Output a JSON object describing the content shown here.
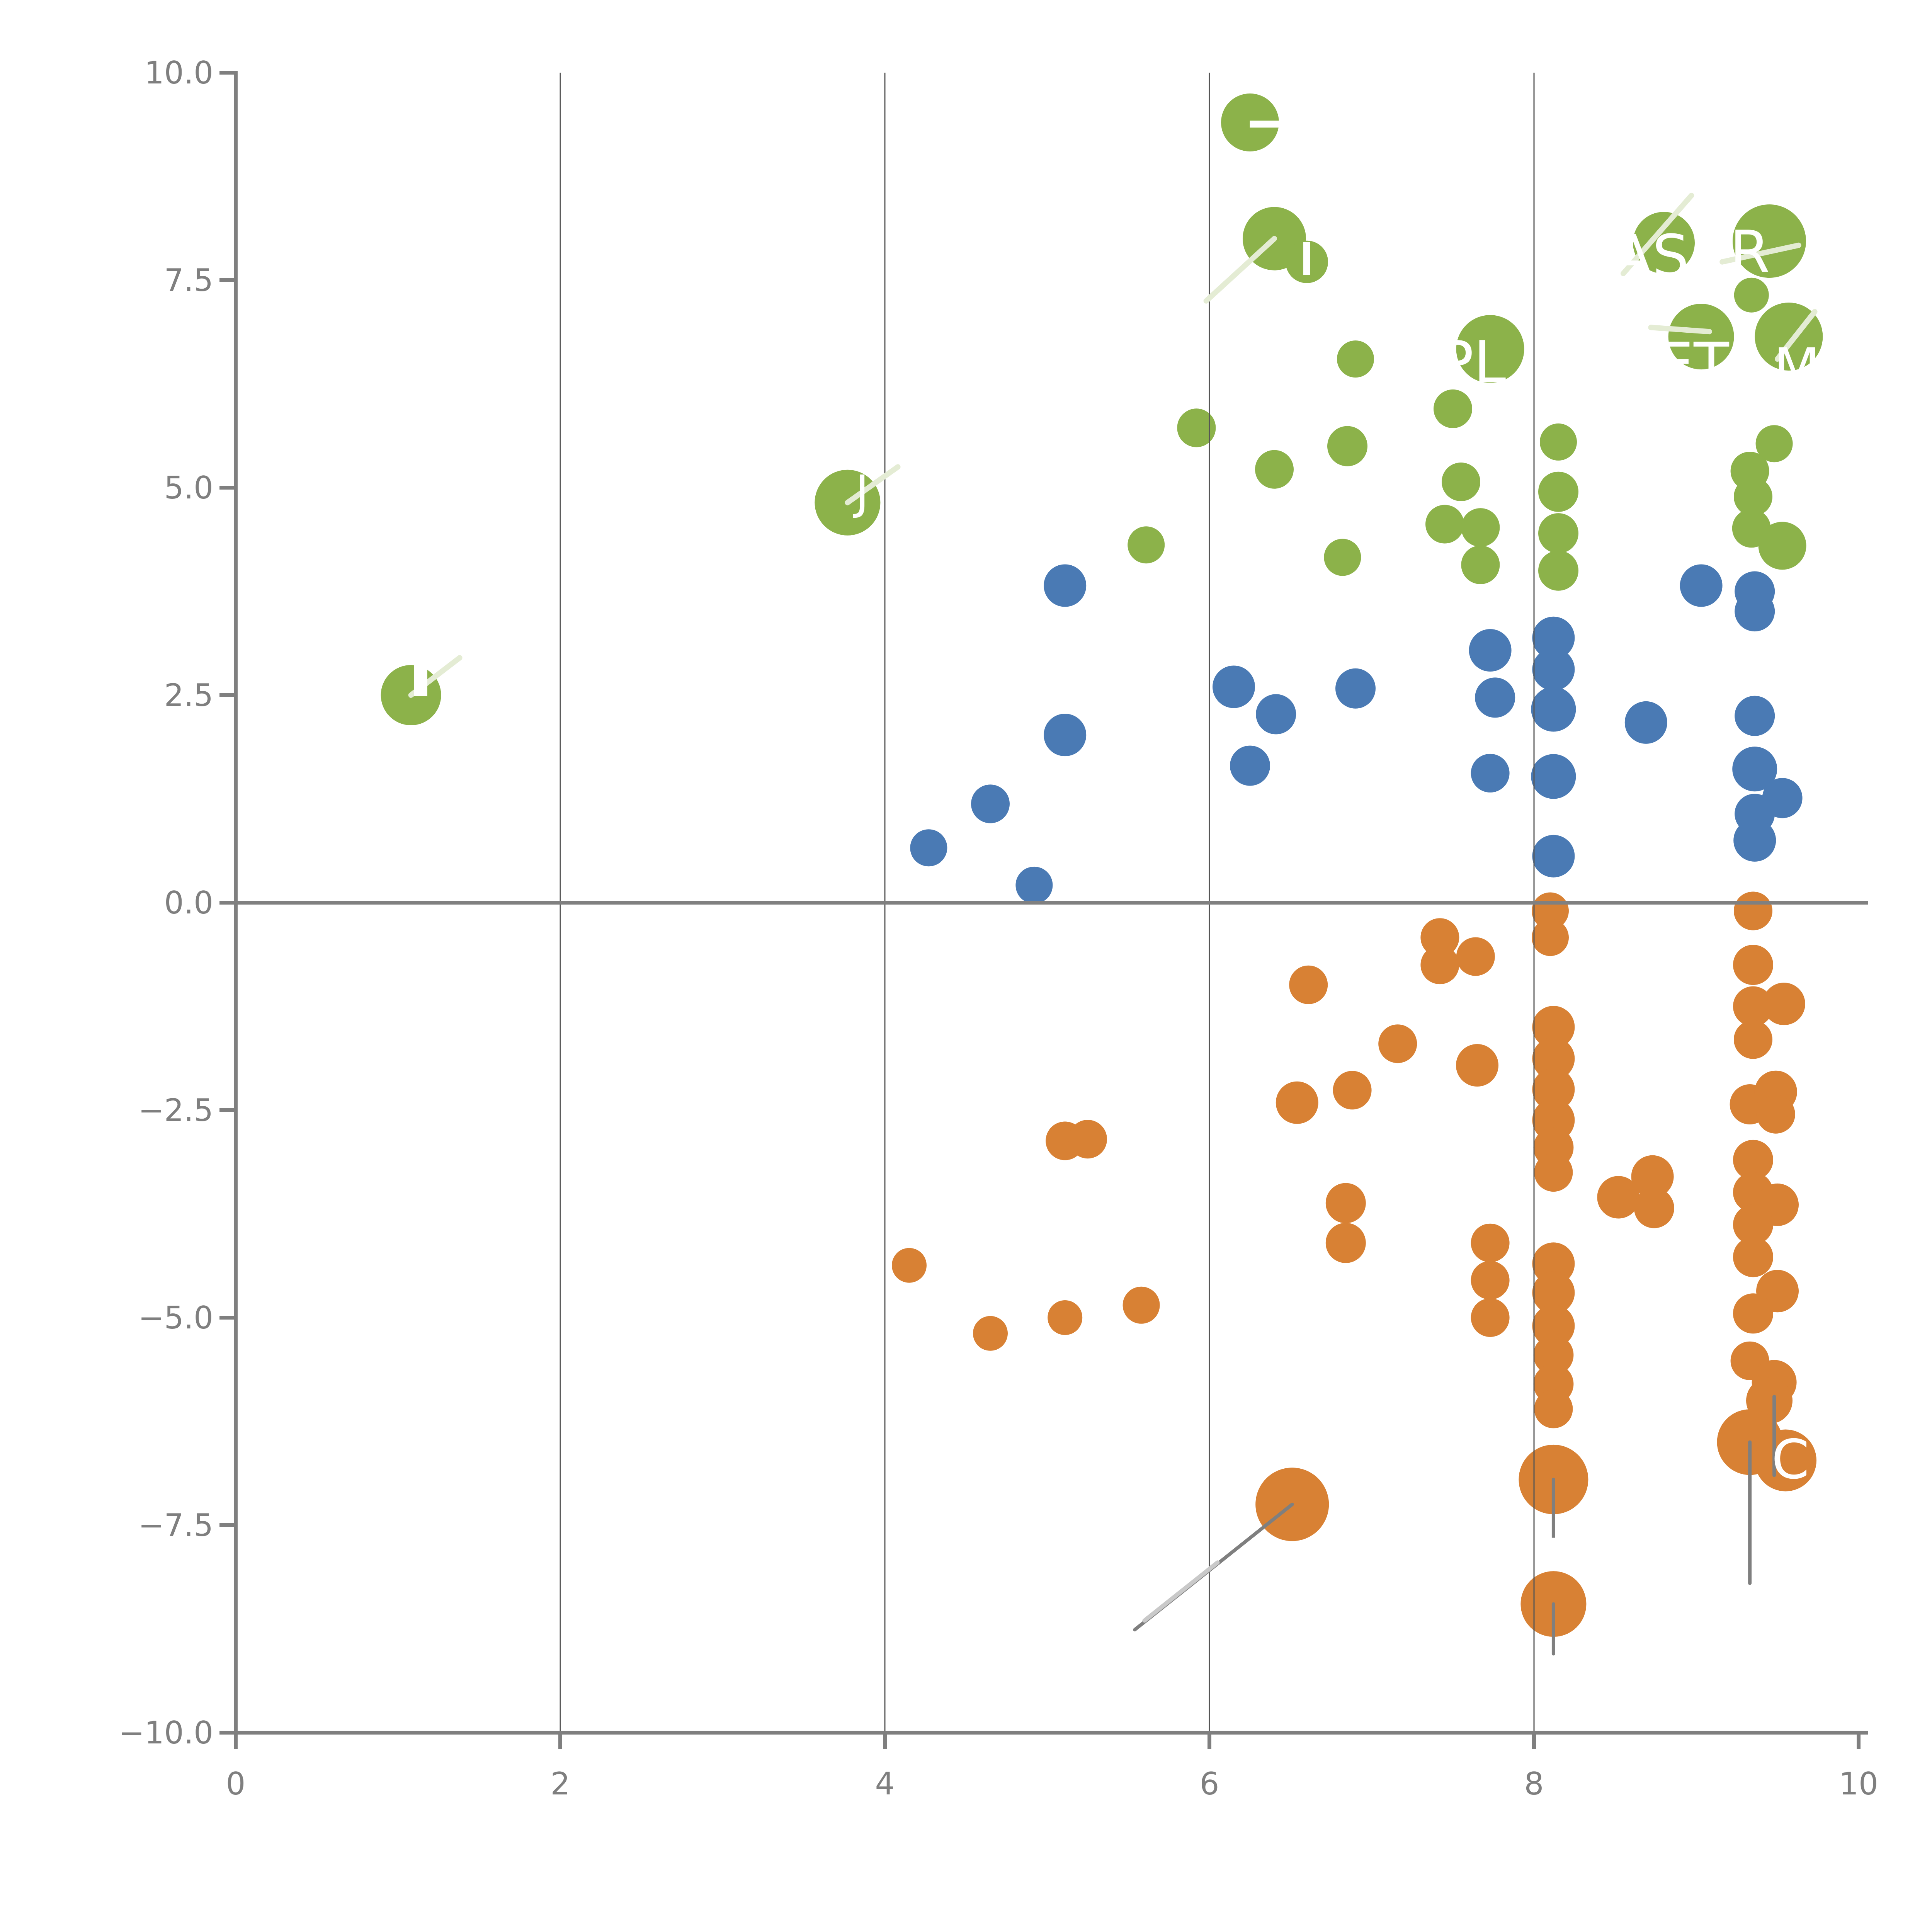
{
  "chart_data": {
    "type": "scatter",
    "title": "",
    "xlabel": "",
    "ylabel": "",
    "xlim": [
      0,
      10
    ],
    "ylim": [
      -10,
      10
    ],
    "grid_on": true,
    "legend": null,
    "background": "#ffffff",
    "axis_color": "#7f7f7f",
    "gridline_color": "#555555",
    "zero_line_color": "#808080",
    "x_ticks": {
      "values": [
        0,
        2,
        4,
        6,
        8,
        10
      ],
      "labels": [
        "0",
        "2",
        "4",
        "6",
        "8",
        "10"
      ]
    },
    "y_ticks": {
      "values": [
        10,
        7.5,
        5,
        2.5,
        0,
        -2.5,
        -5,
        -7.5,
        -10
      ],
      "labels": [
        "10.0",
        "7.5",
        "5.0",
        "2.5",
        "0.0",
        "−2.5",
        "−5.0",
        "−7.5",
        "−10.0"
      ]
    },
    "gridlines_x": [
      2,
      4,
      6,
      8
    ],
    "zero_line_y": 0,
    "series": [
      {
        "name": "green",
        "color": "#8CB24A",
        "points": [
          [
            6.25,
            9.4,
            75
          ],
          [
            6.4,
            8.0,
            82
          ],
          [
            6.6,
            7.72,
            55
          ],
          [
            6.9,
            6.55,
            48
          ],
          [
            5.92,
            5.72,
            50
          ],
          [
            6.4,
            5.22,
            50
          ],
          [
            6.85,
            5.5,
            52
          ],
          [
            7.5,
            5.95,
            50
          ],
          [
            7.73,
            6.67,
            88
          ],
          [
            8.15,
            5.55,
            48
          ],
          [
            8.8,
            7.95,
            80
          ],
          [
            9.45,
            7.97,
            95
          ],
          [
            9.03,
            6.82,
            85
          ],
          [
            9.57,
            6.82,
            88
          ],
          [
            9.34,
            7.32,
            45
          ],
          [
            3.77,
            4.82,
            85
          ],
          [
            1.08,
            2.5,
            78
          ],
          [
            5.61,
            4.31,
            48
          ],
          [
            6.82,
            4.16,
            48
          ],
          [
            7.55,
            5.07,
            50
          ],
          [
            7.45,
            4.56,
            50
          ],
          [
            7.67,
            4.52,
            50
          ],
          [
            7.67,
            4.07,
            50
          ],
          [
            8.15,
            4.95,
            52
          ],
          [
            8.15,
            4.45,
            52
          ],
          [
            8.15,
            4.0,
            52
          ],
          [
            9.48,
            5.53,
            48
          ],
          [
            9.33,
            5.2,
            50
          ],
          [
            9.35,
            4.89,
            50
          ],
          [
            9.34,
            4.51,
            50
          ],
          [
            9.53,
            4.3,
            62
          ]
        ]
      },
      {
        "name": "blue",
        "color": "#4A7AB4",
        "points": [
          [
            5.11,
            3.82,
            55
          ],
          [
            4.65,
            1.19,
            50
          ],
          [
            4.27,
            0.66,
            48
          ],
          [
            4.92,
            0.21,
            48
          ],
          [
            5.11,
            2.02,
            55
          ],
          [
            6.15,
            2.6,
            55
          ],
          [
            6.41,
            2.27,
            52
          ],
          [
            6.25,
            1.65,
            52
          ],
          [
            6.9,
            2.58,
            52
          ],
          [
            7.73,
            3.04,
            55
          ],
          [
            7.76,
            2.47,
            52
          ],
          [
            7.73,
            1.56,
            50
          ],
          [
            8.12,
            3.19,
            55
          ],
          [
            8.12,
            2.81,
            55
          ],
          [
            8.12,
            2.33,
            58
          ],
          [
            8.12,
            1.52,
            58
          ],
          [
            8.12,
            0.56,
            55
          ],
          [
            8.69,
            2.17,
            55
          ],
          [
            9.03,
            3.82,
            55
          ],
          [
            9.36,
            3.75,
            52
          ],
          [
            9.36,
            3.51,
            52
          ],
          [
            9.36,
            2.25,
            52
          ],
          [
            9.36,
            1.61,
            58
          ],
          [
            9.53,
            1.26,
            52
          ],
          [
            9.36,
            1.07,
            52
          ],
          [
            9.36,
            0.75,
            55
          ]
        ]
      },
      {
        "name": "orange",
        "color": "#D88134",
        "points": [
          [
            6.61,
            -0.99,
            50
          ],
          [
            7.42,
            -0.42,
            50
          ],
          [
            7.42,
            -0.75,
            50
          ],
          [
            7.64,
            -0.65,
            50
          ],
          [
            7.16,
            -1.7,
            50
          ],
          [
            6.54,
            -2.41,
            55
          ],
          [
            6.88,
            -2.26,
            50
          ],
          [
            7.65,
            -1.96,
            55
          ],
          [
            5.11,
            -2.87,
            50
          ],
          [
            5.25,
            -2.85,
            50
          ],
          [
            6.84,
            -3.62,
            52
          ],
          [
            6.84,
            -4.1,
            52
          ],
          [
            4.15,
            -4.37,
            45
          ],
          [
            4.65,
            -5.19,
            45
          ],
          [
            5.11,
            -5.0,
            45
          ],
          [
            5.58,
            -4.85,
            48
          ],
          [
            7.73,
            -4.1,
            50
          ],
          [
            7.73,
            -4.55,
            50
          ],
          [
            7.73,
            -5.0,
            50
          ],
          [
            8.1,
            -0.1,
            48
          ],
          [
            8.1,
            -0.42,
            48
          ],
          [
            8.12,
            -1.5,
            55
          ],
          [
            8.12,
            -1.88,
            55
          ],
          [
            8.12,
            -2.25,
            55
          ],
          [
            8.12,
            -2.62,
            55
          ],
          [
            8.12,
            -2.95,
            52
          ],
          [
            8.12,
            -3.25,
            50
          ],
          [
            8.52,
            -3.55,
            55
          ],
          [
            8.73,
            -3.3,
            55
          ],
          [
            8.74,
            -3.68,
            52
          ],
          [
            8.12,
            -4.35,
            55
          ],
          [
            8.12,
            -4.7,
            55
          ],
          [
            8.12,
            -5.1,
            55
          ],
          [
            8.12,
            -5.45,
            52
          ],
          [
            8.12,
            -5.8,
            52
          ],
          [
            8.12,
            -6.1,
            50
          ],
          [
            8.12,
            -6.95,
            90
          ],
          [
            8.12,
            -8.45,
            85
          ],
          [
            6.51,
            -7.25,
            95
          ],
          [
            9.35,
            -0.1,
            50
          ],
          [
            9.35,
            -0.75,
            52
          ],
          [
            9.54,
            -1.22,
            55
          ],
          [
            9.35,
            -1.25,
            52
          ],
          [
            9.35,
            -1.65,
            50
          ],
          [
            9.33,
            -2.43,
            52
          ],
          [
            9.49,
            -2.28,
            55
          ],
          [
            9.49,
            -2.55,
            50
          ],
          [
            9.35,
            -3.1,
            52
          ],
          [
            9.35,
            -3.49,
            52
          ],
          [
            9.5,
            -3.64,
            55
          ],
          [
            9.35,
            -3.88,
            52
          ],
          [
            9.35,
            -4.27,
            52
          ],
          [
            9.5,
            -4.68,
            55
          ],
          [
            9.35,
            -4.95,
            52
          ],
          [
            9.33,
            -5.52,
            50
          ],
          [
            9.48,
            -5.78,
            58
          ],
          [
            9.45,
            -6.0,
            60
          ],
          [
            9.33,
            -6.5,
            85
          ],
          [
            9.55,
            -6.72,
            80
          ]
        ]
      }
    ],
    "annotations": {
      "leader_lines": [
        {
          "x1": 6.51,
          "y1": -7.25,
          "x2": 5.54,
          "y2": -8.76,
          "kind": "dark"
        },
        {
          "x1": 8.12,
          "y1": -6.95,
          "x2": 8.12,
          "y2": -7.95,
          "kind": "dark"
        },
        {
          "x1": 8.12,
          "y1": -8.45,
          "x2": 8.12,
          "y2": -9.05,
          "kind": "dark"
        },
        {
          "x1": 9.33,
          "y1": -6.5,
          "x2": 9.33,
          "y2": -8.2,
          "kind": "dark"
        },
        {
          "x1": 9.48,
          "y1": -5.95,
          "x2": 9.48,
          "y2": -6.9,
          "kind": "dark"
        },
        {
          "x1": 6.05,
          "y1": -7.95,
          "x2": 5.6,
          "y2": -8.65,
          "kind": "lightgray"
        },
        {
          "x1": 6.4,
          "y1": 8.0,
          "x2": 5.98,
          "y2": 7.25,
          "kind": "light"
        },
        {
          "x1": 3.77,
          "y1": 4.82,
          "x2": 4.08,
          "y2": 5.25,
          "kind": "light"
        },
        {
          "x1": 1.08,
          "y1": 2.5,
          "x2": 1.38,
          "y2": 2.95,
          "kind": "light"
        },
        {
          "x1": 8.55,
          "y1": 7.58,
          "x2": 8.97,
          "y2": 8.52,
          "kind": "light"
        },
        {
          "x1": 9.16,
          "y1": 7.72,
          "x2": 9.63,
          "y2": 7.92,
          "kind": "light"
        },
        {
          "x1": 8.72,
          "y1": 6.93,
          "x2": 9.08,
          "y2": 6.88,
          "kind": "light"
        },
        {
          "x1": 9.5,
          "y1": 6.55,
          "x2": 9.73,
          "y2": 7.12,
          "kind": "light"
        }
      ],
      "label_fragments": [
        {
          "text": "PL",
          "x": 7.62,
          "y": 6.52,
          "size": 150
        },
        {
          "text": "AS",
          "x": 8.72,
          "y": 7.8,
          "size": 150
        },
        {
          "text": "R",
          "x": 9.33,
          "y": 7.85,
          "size": 150
        },
        {
          "text": "ET",
          "x": 8.98,
          "y": 6.5,
          "size": 150
        },
        {
          "text": "M",
          "x": 9.62,
          "y": 6.45,
          "size": 140
        },
        {
          "text": "J",
          "x": 3.86,
          "y": 4.95,
          "size": 120
        },
        {
          "text": "C",
          "x": 9.58,
          "y": -6.7,
          "size": 140
        }
      ],
      "white_marks": [
        {
          "x": 6.38,
          "y": 9.38,
          "w": 110,
          "h": 18
        },
        {
          "x": 6.6,
          "y": 7.76,
          "w": 18,
          "h": 85
        },
        {
          "x": 1.14,
          "y": 2.72,
          "w": 34,
          "h": 100
        },
        {
          "x": 8.1,
          "y": -7.85,
          "w": 45,
          "h": 85
        }
      ]
    }
  }
}
